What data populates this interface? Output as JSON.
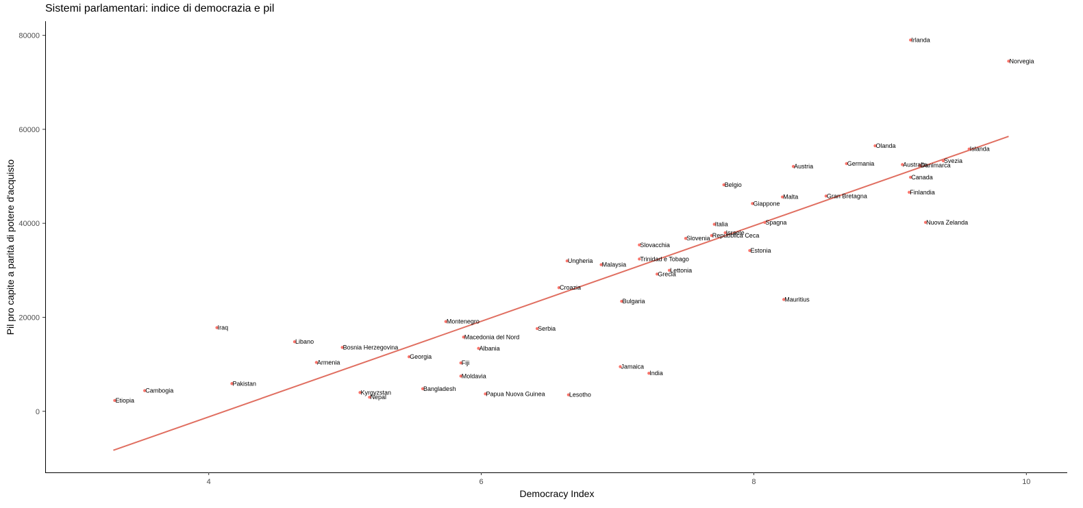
{
  "chart_data": {
    "type": "scatter",
    "title": "Sistemi parlamentari: indice di democrazia e pil",
    "xlabel": "Democracy Index",
    "ylabel": "Pil pro capite a parità di potere d'acquisto",
    "xlim": [
      2.8,
      10.3
    ],
    "ylim": [
      -13000,
      83000
    ],
    "xticks": [
      4,
      6,
      8,
      10
    ],
    "yticks": [
      0,
      20000,
      40000,
      60000,
      80000
    ],
    "grid": false,
    "point_color": "#F8766D",
    "line_color": "#E06E60",
    "trend_line": {
      "x": [
        3.3,
        9.87
      ],
      "y": [
        -8300,
        58500
      ]
    },
    "points": [
      {
        "label": "Irlanda",
        "x": 9.15,
        "y": 79000
      },
      {
        "label": "Norvegia",
        "x": 9.87,
        "y": 74500
      },
      {
        "label": "Olanda",
        "x": 8.89,
        "y": 56500
      },
      {
        "label": "Islanda",
        "x": 9.58,
        "y": 55800
      },
      {
        "label": "Svezia",
        "x": 9.39,
        "y": 53300
      },
      {
        "label": "Danimarca",
        "x": 9.22,
        "y": 52300
      },
      {
        "label": "Australia",
        "x": 9.09,
        "y": 52500
      },
      {
        "label": "Germania",
        "x": 8.68,
        "y": 52700
      },
      {
        "label": "Austria",
        "x": 8.29,
        "y": 52100
      },
      {
        "label": "Canada",
        "x": 9.15,
        "y": 49800
      },
      {
        "label": "Belgio",
        "x": 7.78,
        "y": 48200
      },
      {
        "label": "Finlandia",
        "x": 9.14,
        "y": 46600
      },
      {
        "label": "Malta",
        "x": 8.21,
        "y": 45600
      },
      {
        "label": "Gran Bretagna",
        "x": 8.53,
        "y": 45800
      },
      {
        "label": "Giappone",
        "x": 7.99,
        "y": 44200
      },
      {
        "label": "Nuova Zelanda",
        "x": 9.26,
        "y": 40200
      },
      {
        "label": "Spagna",
        "x": 8.08,
        "y": 40200
      },
      {
        "label": "Italia",
        "x": 7.71,
        "y": 39800
      },
      {
        "label": "Israele",
        "x": 7.79,
        "y": 38000
      },
      {
        "label": "Repubblica Ceca",
        "x": 7.69,
        "y": 37400
      },
      {
        "label": "Slovenia",
        "x": 7.5,
        "y": 36800
      },
      {
        "label": "Slovacchia",
        "x": 7.16,
        "y": 35400
      },
      {
        "label": "Estonia",
        "x": 7.97,
        "y": 34200
      },
      {
        "label": "Ungheria",
        "x": 6.63,
        "y": 32000
      },
      {
        "label": "Trinidad e Tobago",
        "x": 7.16,
        "y": 32400
      },
      {
        "label": "Malaysia",
        "x": 6.88,
        "y": 31200
      },
      {
        "label": "Lettonia",
        "x": 7.38,
        "y": 30000
      },
      {
        "label": "Grecia",
        "x": 7.29,
        "y": 29200
      },
      {
        "label": "Croazia",
        "x": 6.57,
        "y": 26300
      },
      {
        "label": "Mauritius",
        "x": 8.22,
        "y": 23800
      },
      {
        "label": "Bulgaria",
        "x": 7.03,
        "y": 23400
      },
      {
        "label": "Montenegro",
        "x": 5.74,
        "y": 19100
      },
      {
        "label": "Iraq",
        "x": 4.06,
        "y": 17800
      },
      {
        "label": "Serbia",
        "x": 6.41,
        "y": 17600
      },
      {
        "label": "Macedonia del Nord",
        "x": 5.87,
        "y": 15800
      },
      {
        "label": "Libano",
        "x": 4.63,
        "y": 14800
      },
      {
        "label": "Bosnia Herzegovina",
        "x": 4.98,
        "y": 13600
      },
      {
        "label": "Albania",
        "x": 5.98,
        "y": 13400
      },
      {
        "label": "Georgia",
        "x": 5.47,
        "y": 11600
      },
      {
        "label": "Armenia",
        "x": 4.79,
        "y": 10400
      },
      {
        "label": "Fiji",
        "x": 5.85,
        "y": 10300
      },
      {
        "label": "Jamaica",
        "x": 7.02,
        "y": 9500
      },
      {
        "label": "India",
        "x": 7.23,
        "y": 8100
      },
      {
        "label": "Moldavia",
        "x": 5.85,
        "y": 7500
      },
      {
        "label": "Pakistan",
        "x": 4.17,
        "y": 5900
      },
      {
        "label": "Bangladesh",
        "x": 5.57,
        "y": 4800
      },
      {
        "label": "Cambogia",
        "x": 3.53,
        "y": 4400
      },
      {
        "label": "Kyrgyzstan",
        "x": 5.11,
        "y": 4000
      },
      {
        "label": "Papua Nuova Guinea",
        "x": 6.03,
        "y": 3700
      },
      {
        "label": "Lesotho",
        "x": 6.64,
        "y": 3500
      },
      {
        "label": "Nepal",
        "x": 5.18,
        "y": 3000
      },
      {
        "label": "Etiopia",
        "x": 3.31,
        "y": 2300
      }
    ]
  }
}
